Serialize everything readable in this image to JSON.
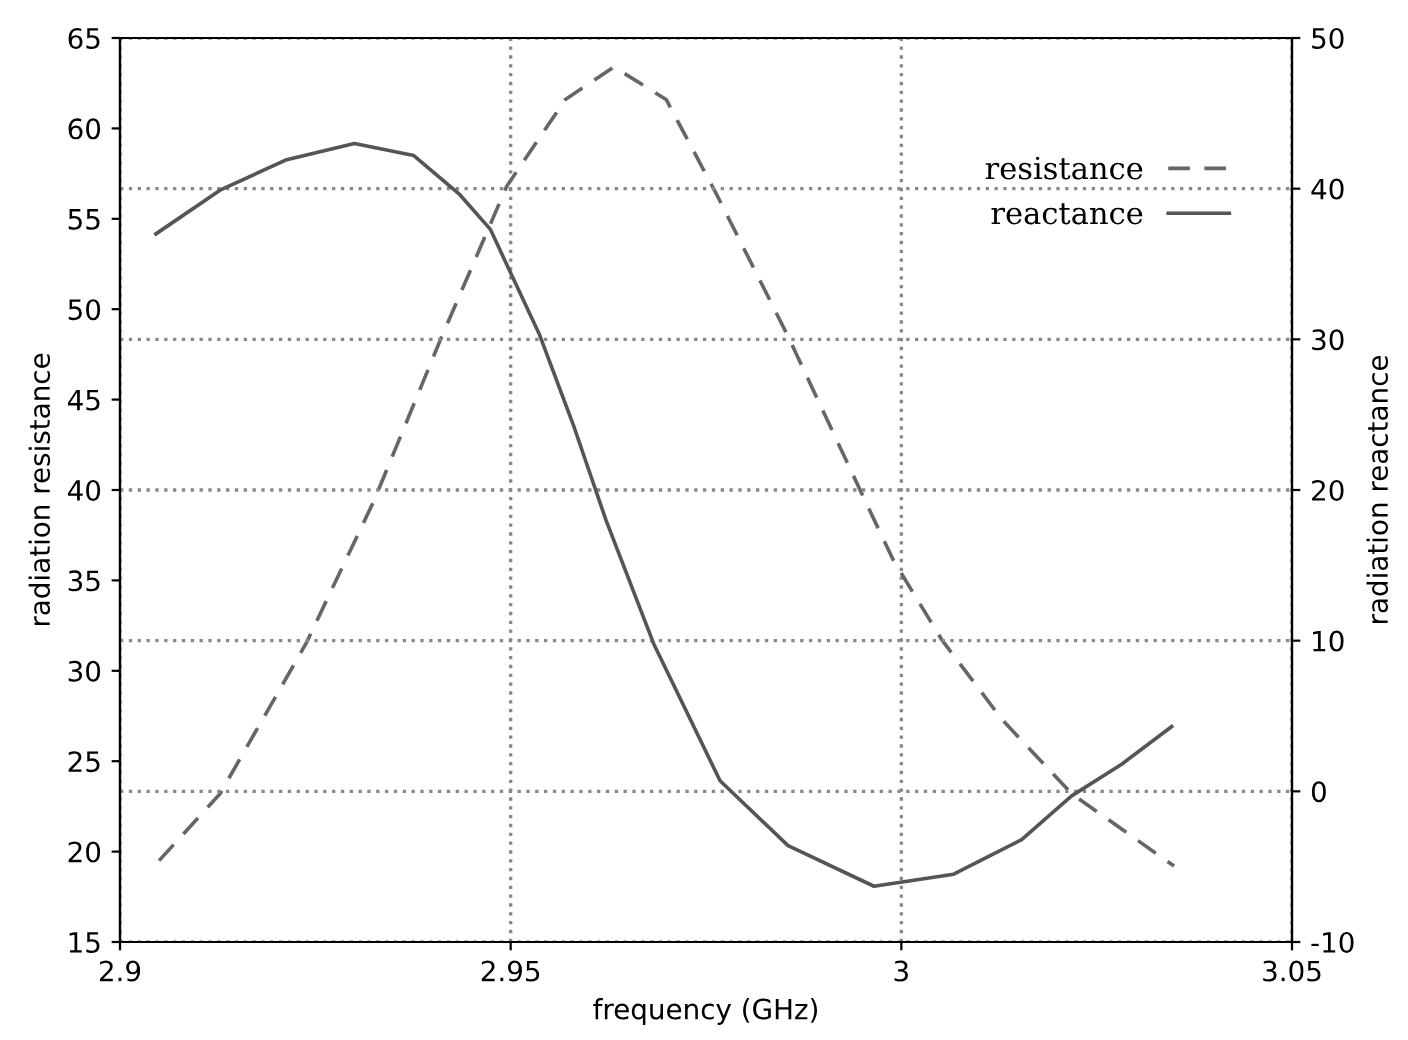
{
  "chart_data": {
    "type": "line",
    "xlabel": "frequency (GHz)",
    "ylabel": "radiation resistance",
    "y2label": "radiation reactance",
    "xlim": [
      2.9,
      3.05
    ],
    "xticks": [
      2.9,
      2.95,
      3,
      3.05
    ],
    "ylim": [
      15,
      65
    ],
    "yticks": [
      15,
      20,
      25,
      30,
      35,
      40,
      45,
      50,
      55,
      60,
      65
    ],
    "y2lim": [
      -10,
      50
    ],
    "y2ticks": [
      -10,
      0,
      10,
      20,
      30,
      40,
      50
    ],
    "grid": true,
    "legend": "top right",
    "marker": "none",
    "series": [
      {
        "name": "resistance",
        "color": "#666666",
        "line_style": "dashed",
        "x": [
          2.905,
          2.9128,
          2.9238,
          2.9325,
          2.941,
          2.9495,
          2.957,
          2.9632,
          2.9699,
          2.9763,
          2.9855,
          2.9957,
          2.999,
          3.0052,
          3.0129,
          3.0218,
          3.0349
        ],
        "values": [
          19.5,
          23.2,
          31.5,
          39.4,
          48.3,
          56.8,
          61.6,
          63.4,
          61.6,
          56.4,
          48.5,
          39.1,
          36.1,
          31.7,
          27.3,
          23.2,
          19.2
        ]
      },
      {
        "name": "reactance",
        "color": "#555555",
        "line_style": "solid",
        "axis": "y2",
        "x": [
          2.9046,
          2.9128,
          2.9212,
          2.93,
          2.9376,
          2.9435,
          2.9474,
          2.9537,
          2.9581,
          2.9622,
          2.9683,
          2.9768,
          2.9855,
          2.9965,
          3.0067,
          3.0154,
          3.0218,
          3.0282,
          3.0346
        ],
        "values": [
          37.0,
          39.9,
          41.9,
          43.0,
          42.2,
          39.6,
          37.3,
          30.3,
          24.2,
          18.0,
          9.8,
          0.7,
          -3.6,
          -6.3,
          -5.5,
          -3.2,
          -0.3,
          1.8,
          4.3
        ]
      }
    ]
  }
}
